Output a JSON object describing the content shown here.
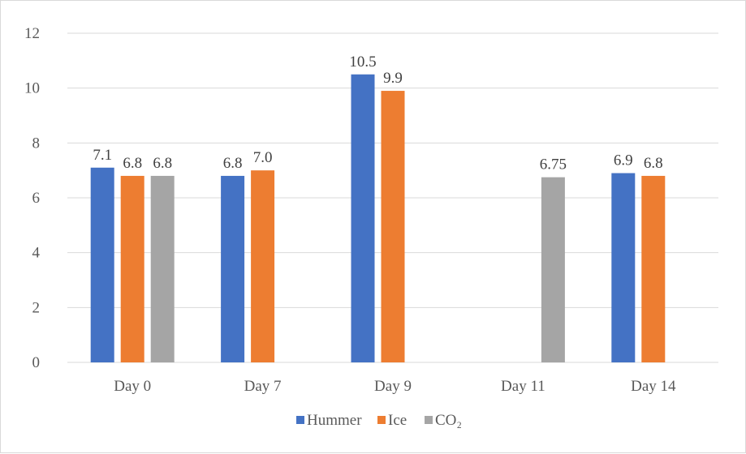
{
  "chart_data": {
    "type": "bar",
    "categories": [
      "Day 0",
      "Day 7",
      "Day 9",
      "Day 11",
      "Day 14"
    ],
    "series": [
      {
        "name": "Hummer",
        "color": "#4472c4",
        "values": [
          7.1,
          6.8,
          10.5,
          null,
          6.9
        ],
        "labels": [
          "7.1",
          "6.8",
          "10.5",
          null,
          "6.9"
        ]
      },
      {
        "name": "Ice",
        "color": "#ed7d31",
        "values": [
          6.8,
          7.0,
          9.9,
          null,
          6.8
        ],
        "labels": [
          "6.8",
          "7.0",
          "9.9",
          null,
          "6.8"
        ]
      },
      {
        "name": "CO₂",
        "color": "#a5a5a5",
        "values": [
          6.8,
          null,
          null,
          6.75,
          null
        ],
        "labels": [
          "6.8",
          null,
          null,
          "6.75",
          null
        ]
      }
    ],
    "ylim": [
      0,
      12
    ],
    "yticks": [
      "0",
      "2",
      "4",
      "6",
      "8",
      "10",
      "12"
    ],
    "grid": true,
    "legend": "bottom"
  }
}
